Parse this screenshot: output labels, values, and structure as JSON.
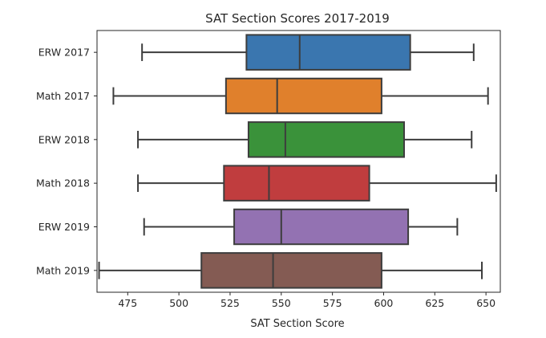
{
  "chart_data": {
    "type": "boxplot",
    "orientation": "horizontal",
    "title": "SAT Section Scores 2017-2019",
    "xlabel": "SAT Section Score",
    "ylabel": "",
    "xlim": [
      460,
      657
    ],
    "xticks": [
      475,
      500,
      525,
      550,
      575,
      600,
      625,
      650
    ],
    "grid": false,
    "categories": [
      "ERW 2017",
      "Math 2017",
      "ERW 2018",
      "Math 2018",
      "ERW 2019",
      "Math 2019"
    ],
    "boxes": [
      {
        "label": "ERW 2017",
        "color": "#3a76af",
        "whisker_low": 482,
        "q1": 533,
        "median": 559,
        "q3": 613,
        "whisker_high": 644
      },
      {
        "label": "Math 2017",
        "color": "#e0802c",
        "whisker_low": 468,
        "q1": 523,
        "median": 548,
        "q3": 599,
        "whisker_high": 651
      },
      {
        "label": "ERW 2018",
        "color": "#3a923a",
        "whisker_low": 480,
        "q1": 534,
        "median": 552,
        "q3": 610,
        "whisker_high": 643
      },
      {
        "label": "Math 2018",
        "color": "#c03d3e",
        "whisker_low": 480,
        "q1": 522,
        "median": 544,
        "q3": 593,
        "whisker_high": 655
      },
      {
        "label": "ERW 2019",
        "color": "#9372b2",
        "whisker_low": 483,
        "q1": 527,
        "median": 550,
        "q3": 612,
        "whisker_high": 636
      },
      {
        "label": "Math 2019",
        "color": "#845b53",
        "whisker_low": 461,
        "q1": 511,
        "median": 546,
        "q3": 599,
        "whisker_high": 648
      }
    ]
  }
}
